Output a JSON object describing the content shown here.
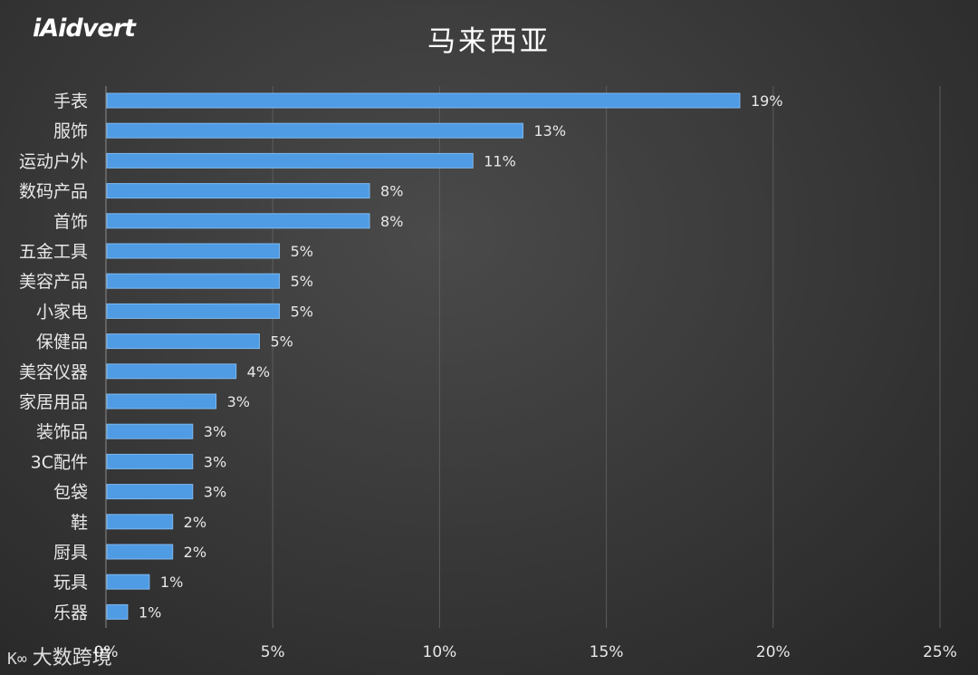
{
  "brand": {
    "logo_text": "iAidvert"
  },
  "watermark": {
    "text": "大数跨境"
  },
  "chart_data": {
    "type": "bar",
    "orientation": "horizontal",
    "title": "马来西亚",
    "categories": [
      "手表",
      "服饰",
      "运动户外",
      "数码产品",
      "首饰",
      "五金工具",
      "美容产品",
      "小家电",
      "保健品",
      "美容仪器",
      "家居用品",
      "装饰品",
      "3C配件",
      "包袋",
      "鞋",
      "厨具",
      "玩具",
      "乐器"
    ],
    "values": [
      19,
      12.5,
      11,
      7.9,
      7.9,
      5.2,
      5.2,
      5.2,
      4.6,
      3.9,
      3.3,
      2.6,
      2.6,
      2.6,
      2.0,
      2.0,
      1.3,
      0.65
    ],
    "data_labels": [
      "19%",
      "13%",
      "11%",
      "8%",
      "8%",
      "5%",
      "5%",
      "5%",
      "5%",
      "4%",
      "3%",
      "3%",
      "3%",
      "3%",
      "2%",
      "2%",
      "1%",
      "1%"
    ],
    "xlim": [
      0,
      25
    ],
    "x_ticks": [
      0,
      5,
      10,
      15,
      20,
      25
    ],
    "x_tick_labels": [
      "0%",
      "5%",
      "10%",
      "15%",
      "20%",
      "25%"
    ],
    "xlabel": "",
    "ylabel": "",
    "grid": "vertical",
    "legend": "none",
    "colors": {
      "bar": "#4f9be4",
      "bar_edge": "#7fb8ee",
      "grid": "#5c5c5c",
      "axis_text": "#e8e8e8"
    }
  }
}
